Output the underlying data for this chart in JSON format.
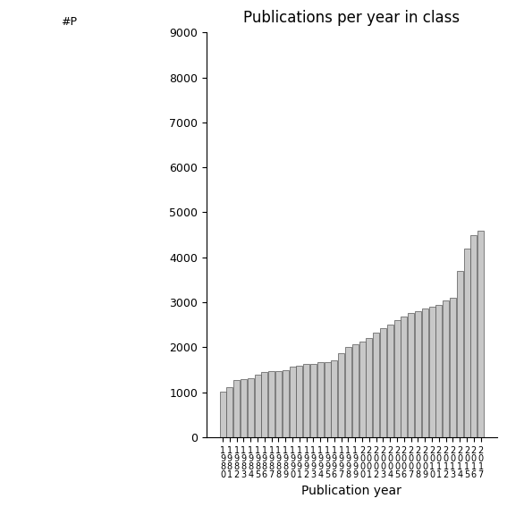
{
  "title": "Publications per year in class",
  "xlabel": "Publication year",
  "ylabel": "#P",
  "ylim": [
    0,
    9000
  ],
  "yticks": [
    0,
    1000,
    2000,
    3000,
    4000,
    5000,
    6000,
    7000,
    8000,
    9000
  ],
  "bar_color": "#c8c8c8",
  "bar_edgecolor": "#555555",
  "years": [
    "1980",
    "1981",
    "1982",
    "1983",
    "1984",
    "1985",
    "1986",
    "1987",
    "1988",
    "1989",
    "1990",
    "1991",
    "1992",
    "1993",
    "1994",
    "1995",
    "1996",
    "1997",
    "1998",
    "1999",
    "2000",
    "2001",
    "2002",
    "2003",
    "2004",
    "2005",
    "2006",
    "2007",
    "2008",
    "2009",
    "2010",
    "2011",
    "2012",
    "2013",
    "2014",
    "2015",
    "2016",
    "2017"
  ],
  "values": [
    1020,
    1120,
    1270,
    1295,
    1315,
    1385,
    1450,
    1465,
    1480,
    1490,
    1570,
    1590,
    1625,
    1640,
    1660,
    1670,
    1700,
    1870,
    2000,
    2070,
    2130,
    2200,
    2330,
    2430,
    2500,
    2600,
    2680,
    2760,
    2800,
    2870,
    2900,
    2950,
    3050,
    3100,
    3700,
    4200,
    4500,
    4600
  ],
  "background_color": "#ffffff",
  "title_fontsize": 12,
  "axis_fontsize": 10,
  "tick_fontsize": 9
}
